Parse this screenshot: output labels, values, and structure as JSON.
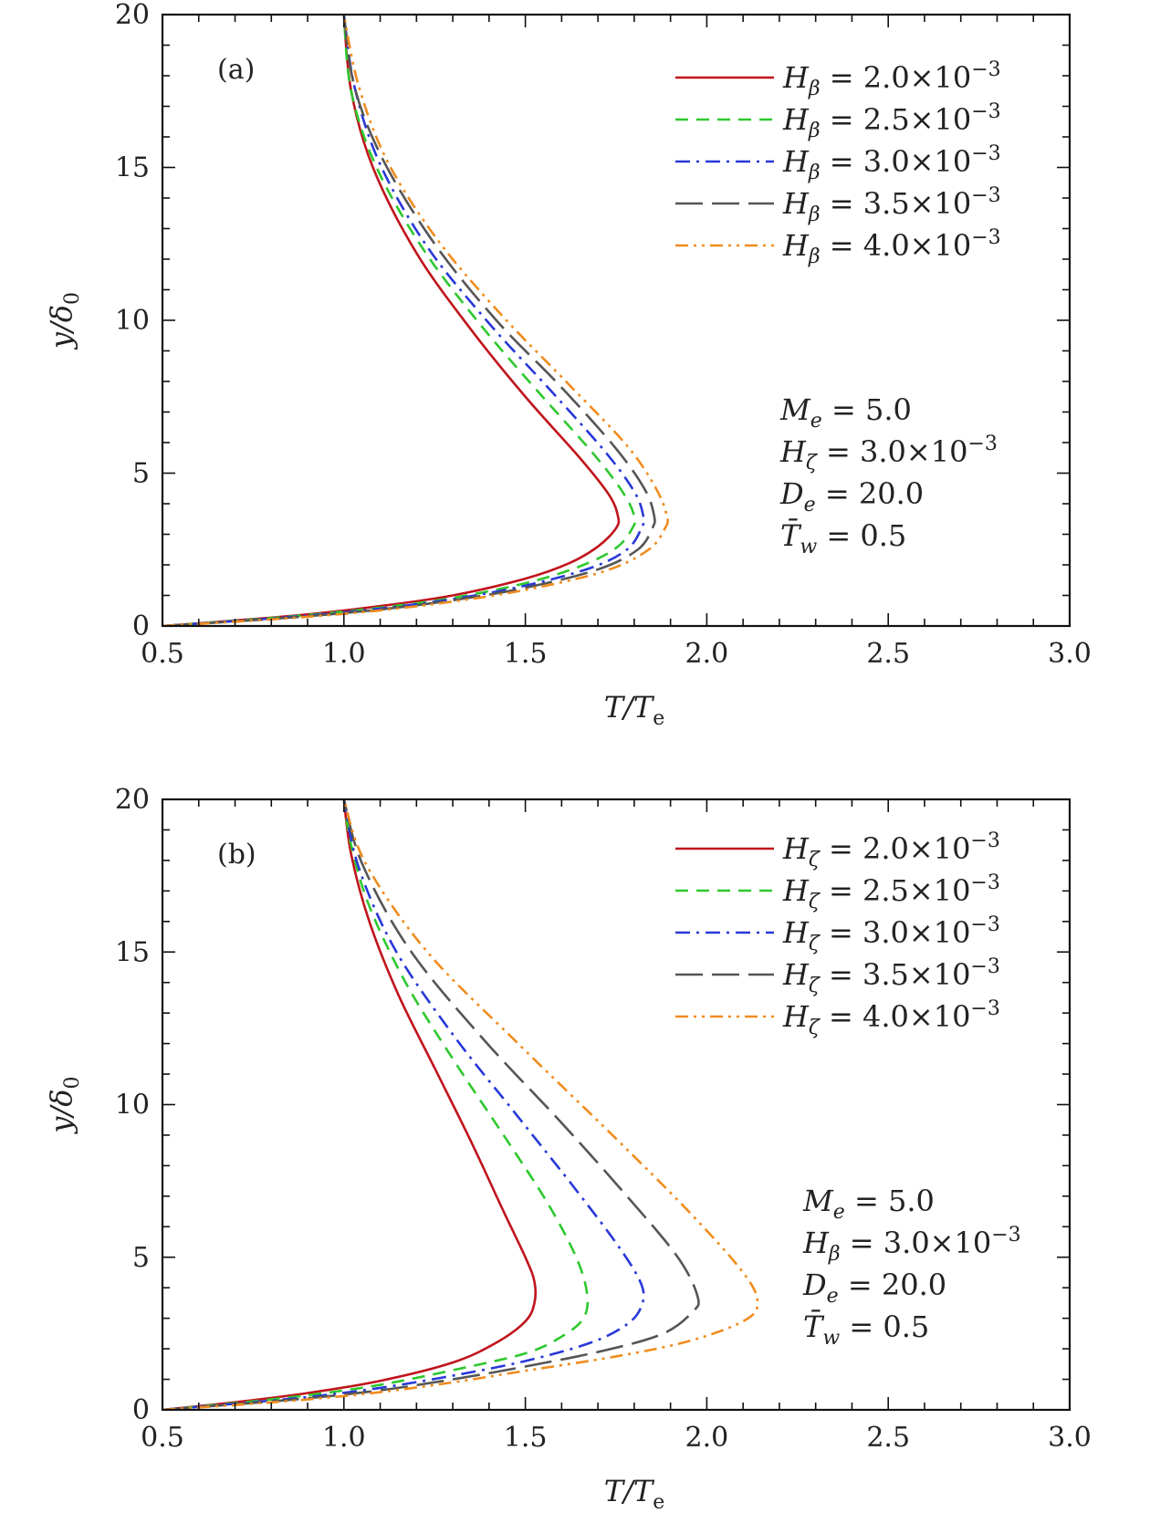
{
  "chart_data": [
    {
      "type": "line",
      "panel_label": "(a)",
      "xlabel": "T/Te",
      "ylabel": "y/δ0",
      "xlim": [
        0.5,
        3.0
      ],
      "ylim": [
        0,
        20
      ],
      "xticks": [
        "0.5",
        "1.0",
        "1.5",
        "2.0",
        "2.5",
        "3.0"
      ],
      "yticks": [
        "0",
        "5",
        "10",
        "15",
        "20"
      ],
      "legend_position": "top-right",
      "parameters": [
        "Me = 5.0",
        "Hζ = 3.0×10⁻³",
        "De = 20.0",
        "T̄w = 0.5"
      ],
      "series": [
        {
          "name": "Hβ = 2.0×10⁻³",
          "color": "#c0141c",
          "dash": "solid",
          "x": [
            0.5,
            0.7,
            0.9,
            1.1,
            1.3,
            1.5,
            1.62,
            1.7,
            1.75,
            1.755,
            1.73,
            1.65,
            1.5,
            1.35,
            1.2,
            1.08,
            1.02,
            1.0
          ],
          "y": [
            0,
            0.18,
            0.38,
            0.65,
            1.0,
            1.55,
            2.05,
            2.6,
            3.2,
            3.6,
            4.3,
            5.5,
            7.5,
            9.7,
            12.2,
            15.0,
            17.5,
            20.0
          ]
        },
        {
          "name": "Hβ = 2.5×10⁻³",
          "color": "#2ec82e",
          "dash": "dashed",
          "x": [
            0.5,
            0.7,
            0.9,
            1.1,
            1.3,
            1.5,
            1.65,
            1.75,
            1.795,
            1.8,
            1.77,
            1.69,
            1.54,
            1.38,
            1.22,
            1.09,
            1.02,
            1.0
          ],
          "y": [
            0,
            0.17,
            0.36,
            0.6,
            0.92,
            1.4,
            1.95,
            2.55,
            3.2,
            3.6,
            4.35,
            5.6,
            7.6,
            9.8,
            12.3,
            15.0,
            17.5,
            20.0
          ]
        },
        {
          "name": "Hβ = 3.0×10⁻³",
          "color": "#2838d8",
          "dash": "dashdot",
          "x": [
            0.5,
            0.7,
            0.9,
            1.1,
            1.3,
            1.5,
            1.68,
            1.78,
            1.82,
            1.825,
            1.8,
            1.72,
            1.57,
            1.4,
            1.23,
            1.1,
            1.03,
            1.0
          ],
          "y": [
            0,
            0.16,
            0.34,
            0.57,
            0.88,
            1.32,
            1.9,
            2.5,
            3.2,
            3.6,
            4.4,
            5.7,
            7.7,
            9.9,
            12.4,
            15.1,
            17.6,
            20.0
          ]
        },
        {
          "name": "Hβ = 3.5×10⁻³",
          "color": "#555555",
          "dash": "longdash",
          "x": [
            0.5,
            0.7,
            0.9,
            1.1,
            1.3,
            1.5,
            1.7,
            1.81,
            1.85,
            1.855,
            1.83,
            1.75,
            1.6,
            1.42,
            1.25,
            1.11,
            1.03,
            1.0
          ],
          "y": [
            0,
            0.15,
            0.32,
            0.54,
            0.84,
            1.25,
            1.85,
            2.5,
            3.2,
            3.6,
            4.45,
            5.8,
            7.8,
            10.0,
            12.5,
            15.2,
            17.6,
            20.0
          ]
        },
        {
          "name": "Hβ = 4.0×10⁻³",
          "color": "#f08c1e",
          "dash": "dashdotdot",
          "x": [
            0.5,
            0.7,
            0.9,
            1.1,
            1.3,
            1.5,
            1.72,
            1.84,
            1.885,
            1.89,
            1.86,
            1.78,
            1.62,
            1.44,
            1.26,
            1.12,
            1.04,
            1.0
          ],
          "y": [
            0,
            0.14,
            0.3,
            0.51,
            0.8,
            1.18,
            1.8,
            2.5,
            3.2,
            3.6,
            4.5,
            5.9,
            7.9,
            10.1,
            12.6,
            15.2,
            17.7,
            20.0
          ]
        }
      ]
    },
    {
      "type": "line",
      "panel_label": "(b)",
      "xlabel": "T/Te",
      "ylabel": "y/δ0",
      "xlim": [
        0.5,
        3.0
      ],
      "ylim": [
        0,
        20
      ],
      "xticks": [
        "0.5",
        "1.0",
        "1.5",
        "2.0",
        "2.5",
        "3.0"
      ],
      "yticks": [
        "0",
        "5",
        "10",
        "15",
        "20"
      ],
      "legend_position": "top-right",
      "parameters": [
        "Me = 5.0",
        "Hβ = 3.0×10⁻³",
        "De = 20.0",
        "T̄w = 0.5"
      ],
      "series": [
        {
          "name": "Hζ = 2.0×10⁻³",
          "color": "#c0141c",
          "dash": "solid",
          "x": [
            0.5,
            0.7,
            0.9,
            1.1,
            1.3,
            1.42,
            1.5,
            1.525,
            1.525,
            1.5,
            1.44,
            1.35,
            1.25,
            1.15,
            1.07,
            1.02,
            1.0
          ],
          "y": [
            0,
            0.25,
            0.55,
            0.95,
            1.55,
            2.2,
            2.9,
            3.5,
            4.2,
            5.0,
            6.5,
            8.8,
            11.2,
            13.6,
            16.0,
            18.2,
            20.0
          ]
        },
        {
          "name": "Hζ = 2.5×10⁻³",
          "color": "#2ec82e",
          "dash": "dashed",
          "x": [
            0.5,
            0.7,
            0.9,
            1.1,
            1.3,
            1.5,
            1.6,
            1.66,
            1.67,
            1.64,
            1.56,
            1.44,
            1.3,
            1.17,
            1.07,
            1.02,
            1.0
          ],
          "y": [
            0,
            0.22,
            0.48,
            0.82,
            1.3,
            1.85,
            2.4,
            3.0,
            3.8,
            5.0,
            6.8,
            9.0,
            11.5,
            14.0,
            16.5,
            18.5,
            20.0
          ]
        },
        {
          "name": "Hζ = 3.0×10⁻³",
          "color": "#2838d8",
          "dash": "dashdot",
          "x": [
            0.5,
            0.7,
            0.9,
            1.1,
            1.3,
            1.5,
            1.68,
            1.78,
            1.82,
            1.82,
            1.76,
            1.64,
            1.48,
            1.3,
            1.14,
            1.04,
            1.0
          ],
          "y": [
            0,
            0.2,
            0.42,
            0.72,
            1.12,
            1.6,
            2.2,
            2.8,
            3.4,
            4.1,
            5.3,
            7.2,
            9.6,
            12.3,
            15.1,
            17.8,
            20.0
          ]
        },
        {
          "name": "Hζ = 3.5×10⁻³",
          "color": "#555555",
          "dash": "longdash",
          "x": [
            0.5,
            0.7,
            0.9,
            1.1,
            1.3,
            1.5,
            1.72,
            1.88,
            1.96,
            1.975,
            1.92,
            1.78,
            1.6,
            1.38,
            1.18,
            1.05,
            1.0
          ],
          "y": [
            0,
            0.18,
            0.38,
            0.64,
            1.0,
            1.42,
            1.95,
            2.5,
            3.2,
            3.7,
            5.0,
            7.0,
            9.4,
            12.2,
            15.1,
            17.9,
            20.0
          ]
        },
        {
          "name": "Hζ = 4.0×10⁻³",
          "color": "#f08c1e",
          "dash": "dashdotdot",
          "x": [
            0.5,
            0.7,
            0.9,
            1.1,
            1.3,
            1.5,
            1.75,
            1.95,
            2.1,
            2.14,
            2.1,
            1.95,
            1.74,
            1.48,
            1.23,
            1.06,
            1.0
          ],
          "y": [
            0,
            0.16,
            0.34,
            0.58,
            0.9,
            1.28,
            1.75,
            2.25,
            2.9,
            3.5,
            4.5,
            6.5,
            9.0,
            12.0,
            15.0,
            17.9,
            20.0
          ]
        }
      ]
    }
  ]
}
